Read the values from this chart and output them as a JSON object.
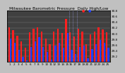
{
  "title": "Milwaukee Barometric Pressure  Daily High/Low",
  "title_fontsize": 4.2,
  "ylim": [
    29.0,
    30.8
  ],
  "yticks": [
    29.2,
    29.4,
    29.6,
    29.8,
    30.0,
    30.2,
    30.4,
    30.6,
    30.8
  ],
  "ytick_labels": [
    "29.2",
    "29.4",
    "29.6",
    "29.8",
    "30.0",
    "30.2",
    "30.4",
    "30.6",
    "30.8"
  ],
  "bar_width": 0.4,
  "plot_bg": "#404040",
  "fig_bg": "#c0c0c0",
  "high_color": "#ff2020",
  "low_color": "#2040ff",
  "highs": [
    30.22,
    30.12,
    29.92,
    29.72,
    29.5,
    30.05,
    30.18,
    30.22,
    30.08,
    29.82,
    29.62,
    30.08,
    30.18,
    30.02,
    30.52,
    30.05,
    29.9,
    30.18,
    30.08,
    29.62,
    29.98,
    30.08,
    30.22,
    30.15,
    30.05
  ],
  "lows": [
    29.82,
    29.68,
    29.42,
    29.18,
    29.05,
    29.52,
    29.72,
    29.88,
    29.52,
    29.35,
    29.08,
    29.58,
    29.68,
    29.5,
    30.02,
    29.42,
    29.28,
    29.52,
    29.58,
    29.12,
    29.45,
    29.62,
    29.78,
    29.68,
    29.5
  ],
  "xlabels": [
    "1",
    "2",
    "3",
    "4",
    "5",
    "6",
    "7",
    "8",
    "9",
    "10",
    "11",
    "12",
    "13",
    "14",
    "15",
    "16",
    "17",
    "18",
    "19",
    "20",
    "21",
    "22",
    "23",
    "24",
    "25"
  ],
  "tick_fontsize": 3.0,
  "xlabel_fontsize": 3.0,
  "dotted_lines": [
    14.5,
    15.5,
    16.5
  ],
  "n_bars": 25
}
